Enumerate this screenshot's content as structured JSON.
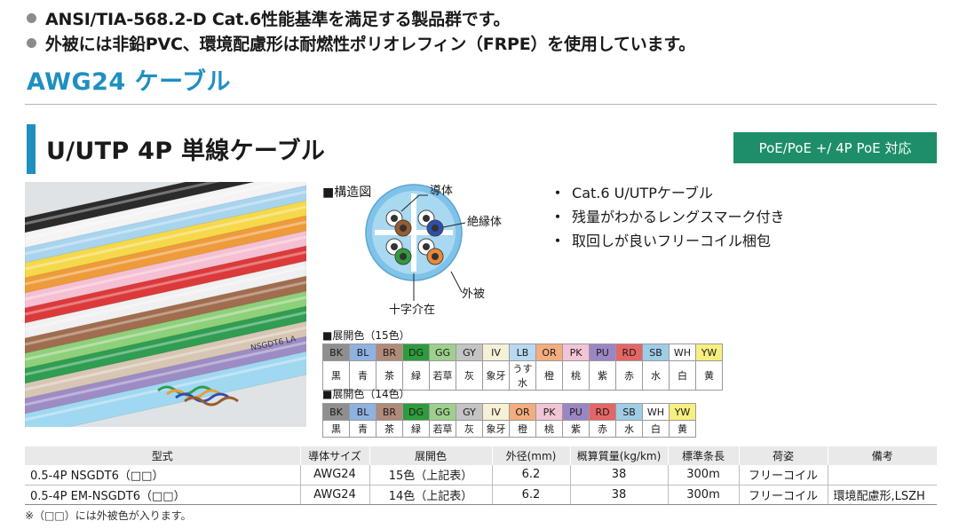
{
  "bullets": [
    "ANSI/TIA-568.2-D Cat.6性能基準を満足する製品群です。",
    "外被には非鉛PVC、環境配慮形は耐燃性ポリオレフィン（FRPE）を使用しています。"
  ],
  "awg_heading": "AWG24 ケーブル",
  "section_title": "U/UTP 4P 単線ケーブル",
  "poe_badge": "PoE/PoE +/ 4P PoE 対応",
  "diagram": {
    "title": "■構造図",
    "labels": {
      "conductor": "導体",
      "insulator": "絶縁体",
      "sheath": "外被",
      "cross_filler": "十字介在"
    }
  },
  "features": [
    "Cat.6 U/UTPケーブル",
    "残量がわかるレングスマーク付き",
    "取回しが良いフリーコイル梱包"
  ],
  "colors15": {
    "title": "■展開色（15色）",
    "codes": [
      "BK",
      "BL",
      "BR",
      "DG",
      "GG",
      "GY",
      "IV",
      "LB",
      "OR",
      "PK",
      "PU",
      "RD",
      "SB",
      "WH",
      "YW"
    ],
    "names": [
      "黒",
      "青",
      "茶",
      "緑",
      "若草",
      "灰",
      "象牙",
      "うす水",
      "橙",
      "桃",
      "紫",
      "赤",
      "水",
      "白",
      "黄"
    ],
    "swatches": [
      "#8f8f8f",
      "#8fb3e0",
      "#b08a7a",
      "#2f9b3c",
      "#9fcf8f",
      "#c4c4c4",
      "#f6f0d6",
      "#b9d9f2",
      "#f3ad7e",
      "#f2c5d6",
      "#9b86c4",
      "#e46666",
      "#9fcde6",
      "#ffffff",
      "#f7ef80"
    ]
  },
  "colors14": {
    "title": "■展開色（14色）",
    "codes": [
      "BK",
      "BL",
      "BR",
      "DG",
      "GG",
      "GY",
      "IV",
      "OR",
      "PK",
      "PU",
      "RD",
      "SB",
      "WH",
      "YW"
    ],
    "names": [
      "黒",
      "青",
      "茶",
      "緑",
      "若草",
      "灰",
      "象牙",
      "橙",
      "桃",
      "紫",
      "赤",
      "水",
      "白",
      "黄"
    ],
    "swatches": [
      "#8f8f8f",
      "#8fb3e0",
      "#b08a7a",
      "#2f9b3c",
      "#9fcf8f",
      "#c4c4c4",
      "#f6f0d6",
      "#f3ad7e",
      "#f2c5d6",
      "#9b86c4",
      "#e46666",
      "#9fcde6",
      "#ffffff",
      "#f7ef80"
    ]
  },
  "spec_table": {
    "headers": [
      "型式",
      "導体サイズ",
      "展開色",
      "外径(mm)",
      "概算質量(kg/km)",
      "標準条長",
      "荷姿",
      "備考"
    ],
    "rows": [
      [
        "0.5-4P NSGDT6（□□）",
        "AWG24",
        "15色（上記表）",
        "6.2",
        "38",
        "300m",
        "フリーコイル",
        ""
      ],
      [
        "0.5-4P EM-NSGDT6（□□）",
        "AWG24",
        "14色（上記表）",
        "6.2",
        "38",
        "300m",
        "フリーコイル",
        "環境配慮形,LSZH"
      ]
    ]
  },
  "footnote": "※（□□）には外被色が入ります。",
  "cable_print": "NSGDT6 LA",
  "accent_colors": {
    "blue": "#1f8fc1",
    "green": "#1d8e69"
  },
  "cable_colors": [
    "#2b2b2b",
    "#f4f4f4",
    "#a8d4ee",
    "#f5d94a",
    "#ee9b3a",
    "#f4c0d2",
    "#dc3a3a",
    "#f0f0f0",
    "#a06d4e",
    "#8fd07a",
    "#2f9d52",
    "#d7c6b3",
    "#9d8cc4",
    "#a0d8f1"
  ]
}
